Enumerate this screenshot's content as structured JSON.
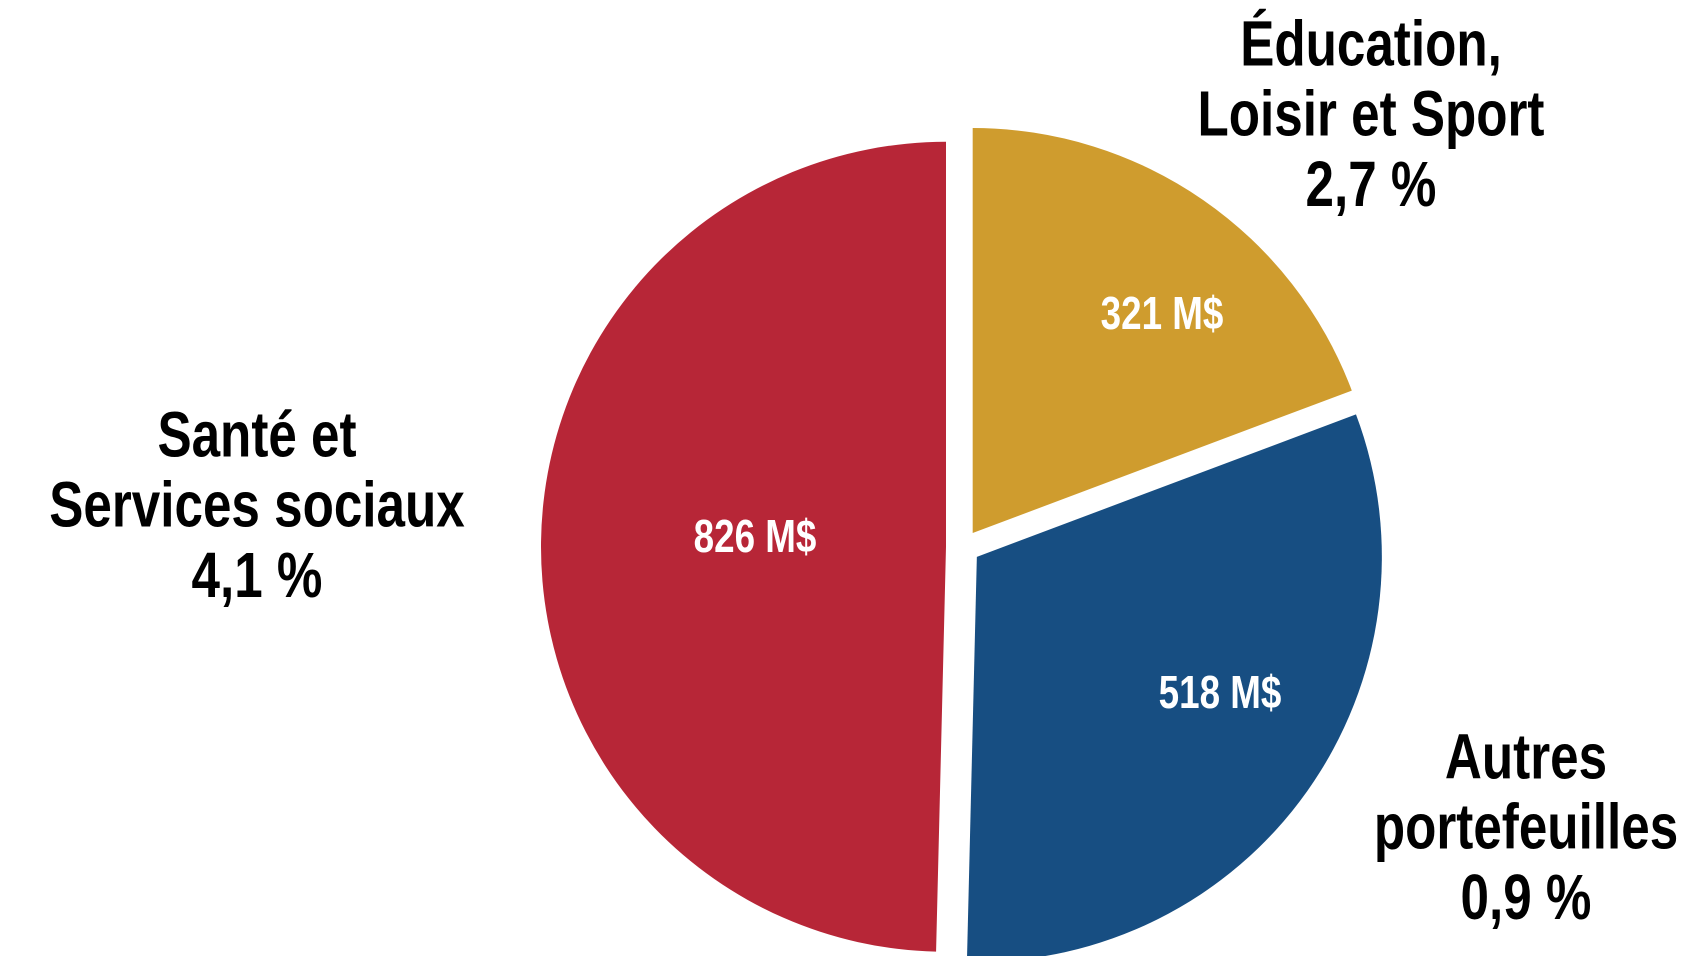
{
  "chart_data": {
    "type": "pie",
    "categories": [
      "Éducation, Loisir et Sport",
      "Autres portefeuilles",
      "Santé et Services sociaux"
    ],
    "values": [
      321,
      518,
      826
    ],
    "value_labels": [
      "321 M$",
      "518 M$",
      "826 M$"
    ],
    "annotations": [
      "2,7 %",
      "0,9 %",
      "4,1 %"
    ],
    "colors": [
      "#cf9c2e",
      "#174e82",
      "#b72637"
    ]
  }
}
